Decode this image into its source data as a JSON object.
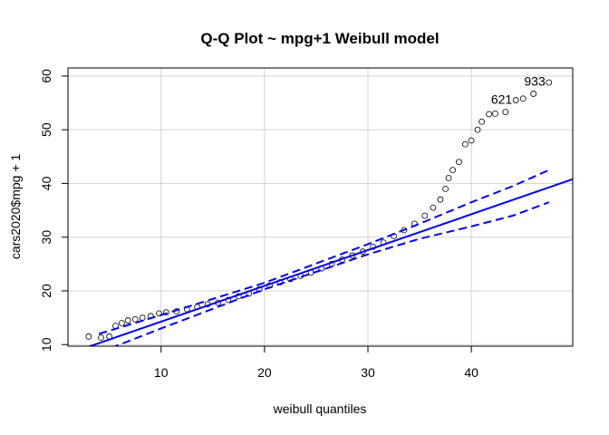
{
  "chart_data": {
    "type": "scatter",
    "title": "Q-Q Plot ~ mpg+1 Weibull model",
    "x_label": "weibull quantiles",
    "y_label": "cars2020$mpg + 1",
    "xlim": [
      1.0,
      49.8
    ],
    "ylim": [
      9.7,
      61.5
    ],
    "xticks": [
      10,
      20,
      30,
      40
    ],
    "yticks": [
      10,
      20,
      30,
      40,
      50,
      60
    ],
    "grid": true,
    "series": [
      {
        "type": "scatter",
        "color": "#000000",
        "x": [
          3,
          4.2,
          5,
          5.6,
          6.2,
          6.8,
          7.5,
          8.2,
          9,
          9.8,
          10.5,
          11.5,
          12.5,
          13.5,
          14.5,
          15.5,
          16.5,
          17.5,
          18.5,
          19.5,
          20.5,
          21.5,
          22.5,
          23.5,
          24.5,
          25.5,
          26.5,
          27.5,
          28.5,
          29.5,
          30.5,
          31.5,
          32.5,
          33.5,
          34.5,
          35.5,
          36.3,
          37,
          37.5,
          37.8,
          38.2,
          38.8,
          39.4,
          40,
          40.6,
          41,
          41.7,
          42.3,
          43.3,
          44.3,
          45.0,
          46.0,
          47.5
        ],
        "values": [
          11.5,
          11.3,
          11.5,
          13.5,
          14,
          14.5,
          14.7,
          15,
          15.3,
          15.8,
          16,
          16.2,
          16.6,
          17,
          17.5,
          17.8,
          18.3,
          19,
          19.5,
          20.3,
          21,
          21.6,
          22.2,
          22.8,
          23.4,
          24.2,
          25,
          25.8,
          26.6,
          27.3,
          28.2,
          29,
          30.2,
          31.3,
          32.5,
          34,
          35.5,
          37,
          39,
          41,
          42.5,
          44,
          47.3,
          48,
          50,
          51.5,
          52.9,
          53,
          53.3,
          55.5,
          55.8,
          56.7,
          58.8
        ],
        "point_labels": [
          null,
          null,
          null,
          null,
          null,
          null,
          null,
          null,
          null,
          null,
          null,
          null,
          null,
          null,
          null,
          null,
          null,
          null,
          null,
          null,
          null,
          null,
          null,
          null,
          null,
          null,
          null,
          null,
          null,
          null,
          null,
          null,
          null,
          null,
          null,
          null,
          null,
          null,
          null,
          null,
          null,
          null,
          null,
          null,
          null,
          null,
          null,
          null,
          null,
          "621",
          null,
          null,
          "933"
        ]
      },
      {
        "type": "line",
        "color": "#0000ff",
        "dash": false,
        "x": [
          1.0,
          49.8
        ],
        "values": [
          8.27,
          40.8
        ]
      },
      {
        "type": "line",
        "color": "#0000ff",
        "dash": true,
        "x": [
          4,
          10,
          20,
          30,
          35,
          40,
          44,
          47.5
        ],
        "values": [
          12,
          15.5,
          21.5,
          28.7,
          32.5,
          36.5,
          39.5,
          42.5
        ]
      },
      {
        "type": "line",
        "color": "#0000ff",
        "dash": true,
        "x": [
          4,
          10,
          20,
          30,
          35,
          40,
          44,
          47.5
        ],
        "values": [
          8.5,
          13,
          20.3,
          26.8,
          29.7,
          32,
          34,
          36.5
        ]
      }
    ]
  }
}
